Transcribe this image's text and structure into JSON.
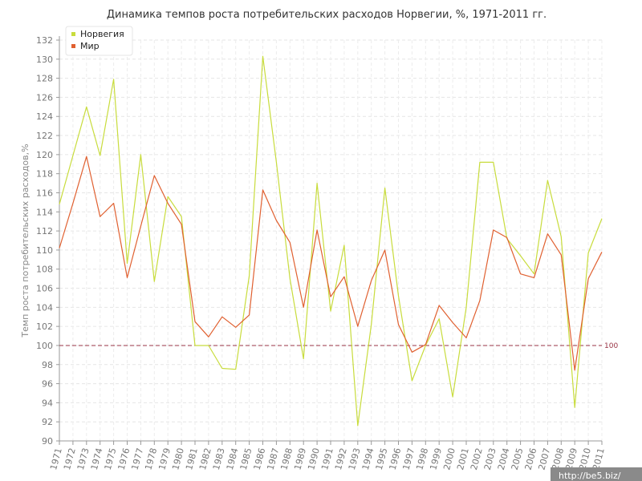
{
  "chart_data": {
    "type": "line",
    "title": "Динамика темпов роста потребительских расходов Норвегии, %, 1971-2011 гг.",
    "xlabel": "",
    "ylabel": "Темп роста потребительских расходов,%",
    "ylim": [
      90,
      132
    ],
    "yticks": [
      90,
      92,
      94,
      96,
      98,
      100,
      102,
      104,
      106,
      108,
      110,
      112,
      114,
      116,
      118,
      120,
      122,
      124,
      126,
      128,
      130,
      132
    ],
    "categories": [
      "1971",
      "1972",
      "1973",
      "1974",
      "1975",
      "1976",
      "1977",
      "1978",
      "1979",
      "1980",
      "1981",
      "1982",
      "1983",
      "1984",
      "1985",
      "1986",
      "1987",
      "1988",
      "1989",
      "1990",
      "1991",
      "1992",
      "1993",
      "1994",
      "1995",
      "1996",
      "1997",
      "1998",
      "1999",
      "2000",
      "2001",
      "2002",
      "2003",
      "2004",
      "2005",
      "2006",
      "2007",
      "2008",
      "2009",
      "2010",
      "2011"
    ],
    "series": [
      {
        "name": "Норвегия",
        "color": "#c8dc3c",
        "values": [
          114.8,
          119.9,
          125.0,
          119.9,
          127.9,
          108.6,
          120.0,
          106.7,
          115.6,
          113.5,
          100.0,
          100.0,
          97.6,
          97.5,
          107.3,
          130.3,
          119.2,
          107.0,
          98.6,
          117.0,
          103.6,
          110.5,
          91.6,
          102.2,
          116.5,
          105.2,
          96.3,
          100.0,
          102.8,
          94.6,
          104.0,
          119.2,
          119.2,
          111.2,
          109.4,
          107.5,
          117.3,
          111.4,
          93.5,
          109.7,
          113.3
        ]
      },
      {
        "name": "Мир",
        "color": "#e06030",
        "values": [
          110.2,
          114.9,
          119.8,
          113.5,
          114.9,
          107.1,
          112.5,
          117.8,
          114.9,
          112.7,
          102.5,
          100.9,
          103.0,
          101.9,
          103.2,
          116.3,
          113.1,
          110.8,
          104.0,
          112.1,
          105.1,
          107.2,
          102.0,
          106.8,
          110.0,
          102.2,
          99.3,
          100.1,
          104.2,
          102.4,
          100.8,
          104.7,
          112.1,
          111.3,
          107.5,
          107.1,
          111.7,
          109.5,
          97.4,
          107.0,
          109.8
        ]
      }
    ],
    "reference_line": {
      "value": 100,
      "label": "100",
      "color": "#993344"
    },
    "grid": true,
    "legend_position": "top-left"
  },
  "watermark": "http://be5.biz/"
}
